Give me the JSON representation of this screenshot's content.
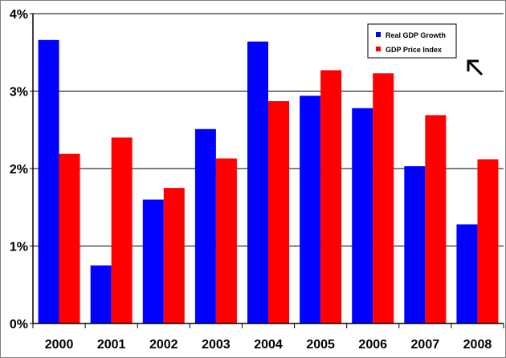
{
  "chart_data": {
    "type": "bar",
    "categories": [
      "2000",
      "2001",
      "2002",
      "2003",
      "2004",
      "2005",
      "2006",
      "2007",
      "2008"
    ],
    "series": [
      {
        "name": "Real GDP Growth",
        "color": "#0000ff",
        "values": [
          3.66,
          0.75,
          1.6,
          2.51,
          3.64,
          2.94,
          2.78,
          2.03,
          1.28
        ]
      },
      {
        "name": "GDP Price Index",
        "color": "#ff0000",
        "values": [
          2.19,
          2.4,
          1.75,
          2.13,
          2.87,
          3.27,
          3.23,
          2.69,
          2.12
        ]
      }
    ],
    "ylim": [
      0,
      4
    ],
    "yticks": [
      0,
      1,
      2,
      3,
      4
    ],
    "ytick_labels": [
      "0%",
      "1%",
      "2%",
      "3%",
      "4%"
    ],
    "grid": true,
    "legend_position": "top-right",
    "annotation": "arrow-up-left-icon"
  }
}
